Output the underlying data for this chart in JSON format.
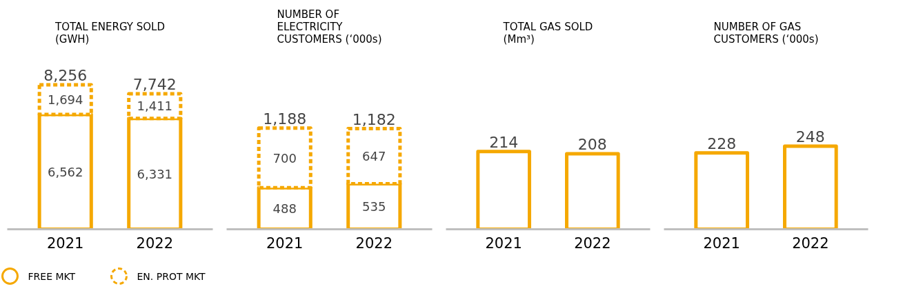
{
  "chart_data": [
    {
      "type": "bar",
      "title": "TOTAL ENERGY SOLD\n(GWH)",
      "categories": [
        "2021",
        "2022"
      ],
      "stacked": true,
      "series": [
        {
          "name": "FREE MKT",
          "color": "#f5a800",
          "values": [
            6562,
            6331
          ],
          "value_labels": [
            "6,562",
            "6,331"
          ]
        },
        {
          "name": "EN. PROT MKT",
          "color": "#f5a800",
          "line_style": "dashed",
          "values": [
            1694,
            1411
          ],
          "value_labels": [
            "1,694",
            "1,411"
          ]
        }
      ],
      "totals": [
        "8,256",
        "7,742"
      ],
      "tick_labels": "x",
      "grid": false,
      "legend": "bottom"
    },
    {
      "type": "bar",
      "title": "NUMBER OF\nELECTRICITY\nCUSTOMERS (‘000s)",
      "categories": [
        "2021",
        "2022"
      ],
      "stacked": true,
      "series": [
        {
          "color": "#f5a800",
          "values": [
            488,
            535
          ]
        },
        {
          "color": "#f5a800",
          "line_style": "dashed",
          "values": [
            700,
            647
          ]
        }
      ],
      "data_labels": true,
      "totals": [
        "1,188",
        "1,182"
      ],
      "tick_labels": "x",
      "grid": false
    },
    {
      "type": "bar",
      "title": "TOTAL GAS SOLD\n(Mm³)",
      "categories": [
        "2021",
        "2022"
      ],
      "color": "#f5a800",
      "values": [
        214,
        208
      ],
      "data_labels": true,
      "tick_labels": "x",
      "grid": false
    },
    {
      "type": "bar",
      "title": "NUMBER OF GAS\nCUSTOMERS (‘000s)",
      "categories": [
        "2021",
        "2022"
      ],
      "color": "#f5a800",
      "values": [
        228,
        248
      ],
      "data_labels": true,
      "tick_labels": "x",
      "grid": false
    }
  ]
}
